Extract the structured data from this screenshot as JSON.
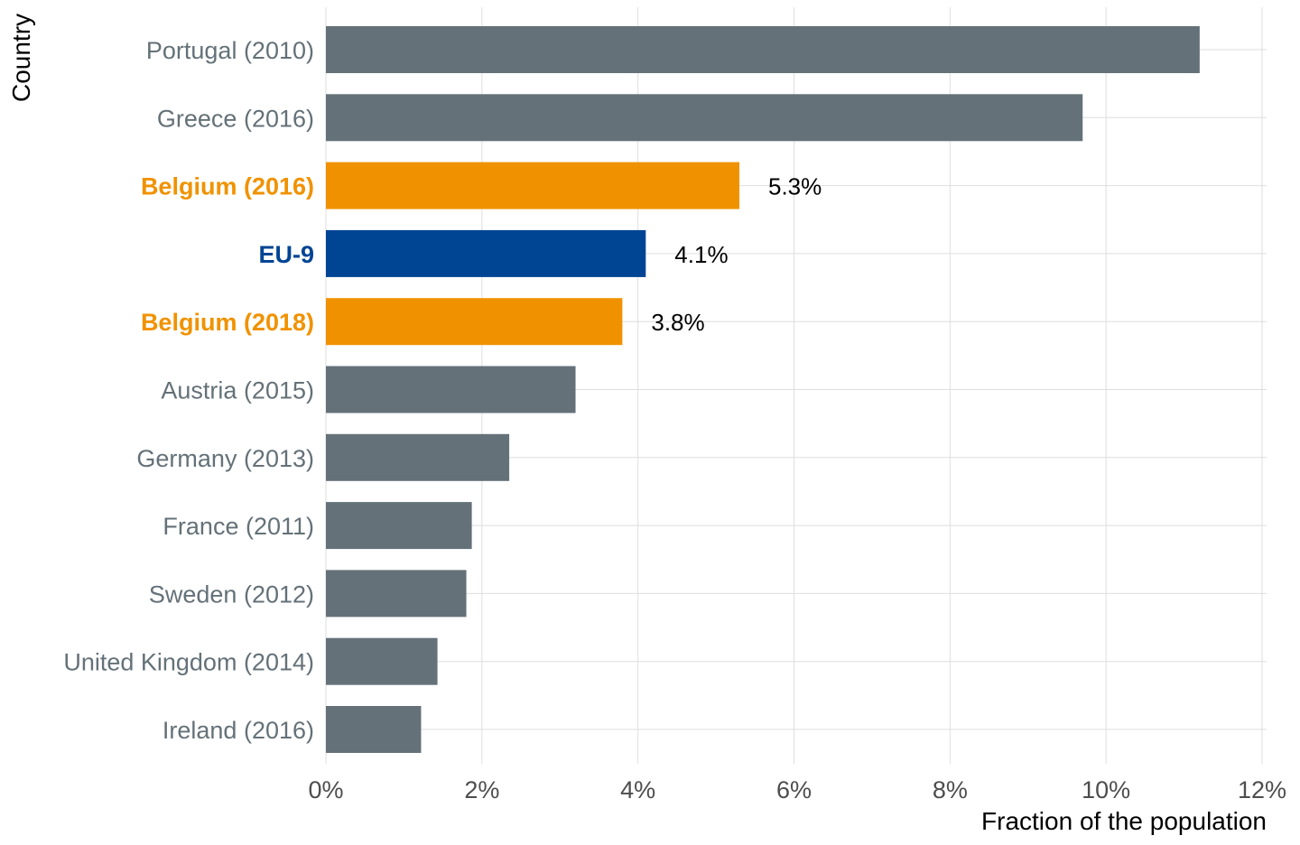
{
  "chart_data": {
    "type": "bar",
    "orientation": "horizontal",
    "categories": [
      "Portugal (2010)",
      "Greece (2016)",
      "Belgium (2016)",
      "EU-9",
      "Belgium (2018)",
      "Austria (2015)",
      "Germany (2013)",
      "France (2011)",
      "Sweden (2012)",
      "United Kingdom (2014)",
      "Ireland (2016)"
    ],
    "values": [
      11.2,
      9.7,
      5.3,
      4.1,
      3.8,
      3.2,
      2.35,
      1.87,
      1.8,
      1.43,
      1.22
    ],
    "bar_colors": [
      "#647178",
      "#647178",
      "#f09200",
      "#004494",
      "#f09200",
      "#647178",
      "#647178",
      "#647178",
      "#647178",
      "#647178",
      "#647178"
    ],
    "label_colors": [
      "#647178",
      "#647178",
      "#f09200",
      "#004494",
      "#f09200",
      "#647178",
      "#647178",
      "#647178",
      "#647178",
      "#647178",
      "#647178"
    ],
    "label_bold": [
      false,
      false,
      true,
      true,
      true,
      false,
      false,
      false,
      false,
      false,
      false
    ],
    "data_labels": [
      "",
      "",
      "5.3%",
      "4.1%",
      "3.8%",
      "",
      "",
      "",
      "",
      "",
      ""
    ],
    "xlabel": "Fraction of the population",
    "ylabel": "Country",
    "xlim": [
      0,
      12
    ],
    "x_ticks": [
      0,
      2,
      4,
      6,
      8,
      10,
      12
    ],
    "x_tick_labels": [
      "0%",
      "2%",
      "4%",
      "6%",
      "8%",
      "10%",
      "12%"
    ],
    "grid": true,
    "legend": "none"
  }
}
